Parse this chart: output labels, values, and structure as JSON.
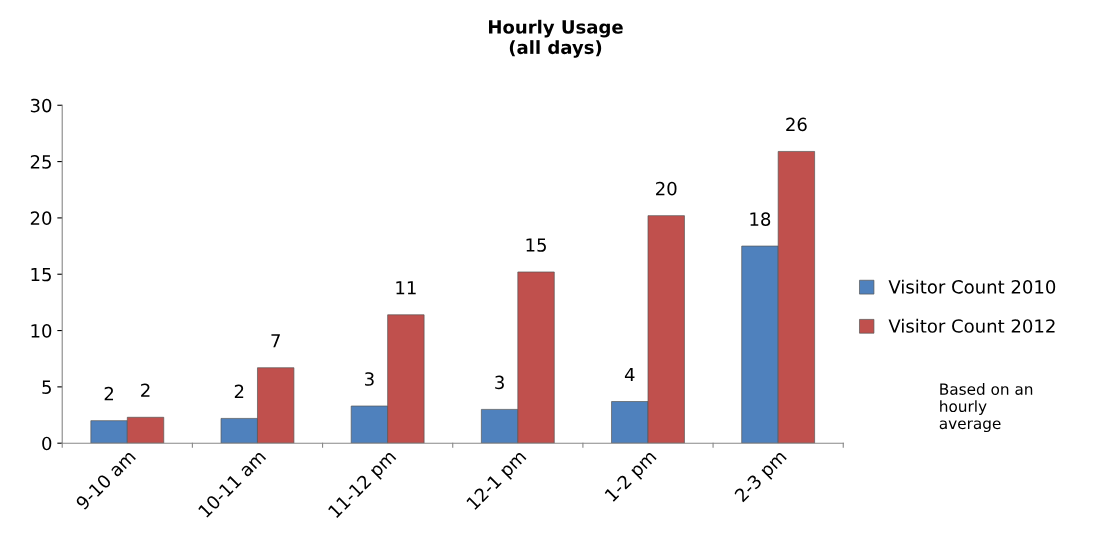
{
  "chart_data": {
    "type": "bar",
    "title": "Hourly Usage\n(all days)",
    "categories": [
      "9-10 am",
      "10-11 am",
      "11-12 pm",
      "12-1 pm",
      "1-2 pm",
      "2-3 pm"
    ],
    "series": [
      {
        "name": "Visitor Count 2010",
        "color": "#4f81bd",
        "values": [
          2.0,
          2.2,
          3.3,
          3.0,
          3.7,
          17.5
        ],
        "value_labels": [
          "2",
          "2",
          "3",
          "3",
          "4",
          "18"
        ]
      },
      {
        "name": "Visitor Count 2012",
        "color": "#c0504d",
        "values": [
          2.3,
          6.7,
          11.4,
          15.2,
          20.2,
          25.9
        ],
        "value_labels": [
          "2",
          "7",
          "11",
          "15",
          "20",
          "26"
        ]
      }
    ],
    "ylim": [
      0,
      30
    ],
    "yticks": [
      0,
      5,
      10,
      15,
      20,
      25,
      30
    ],
    "grid": false,
    "legend": "right",
    "annotations": [
      "Based on an\nhourly\naverage"
    ]
  }
}
